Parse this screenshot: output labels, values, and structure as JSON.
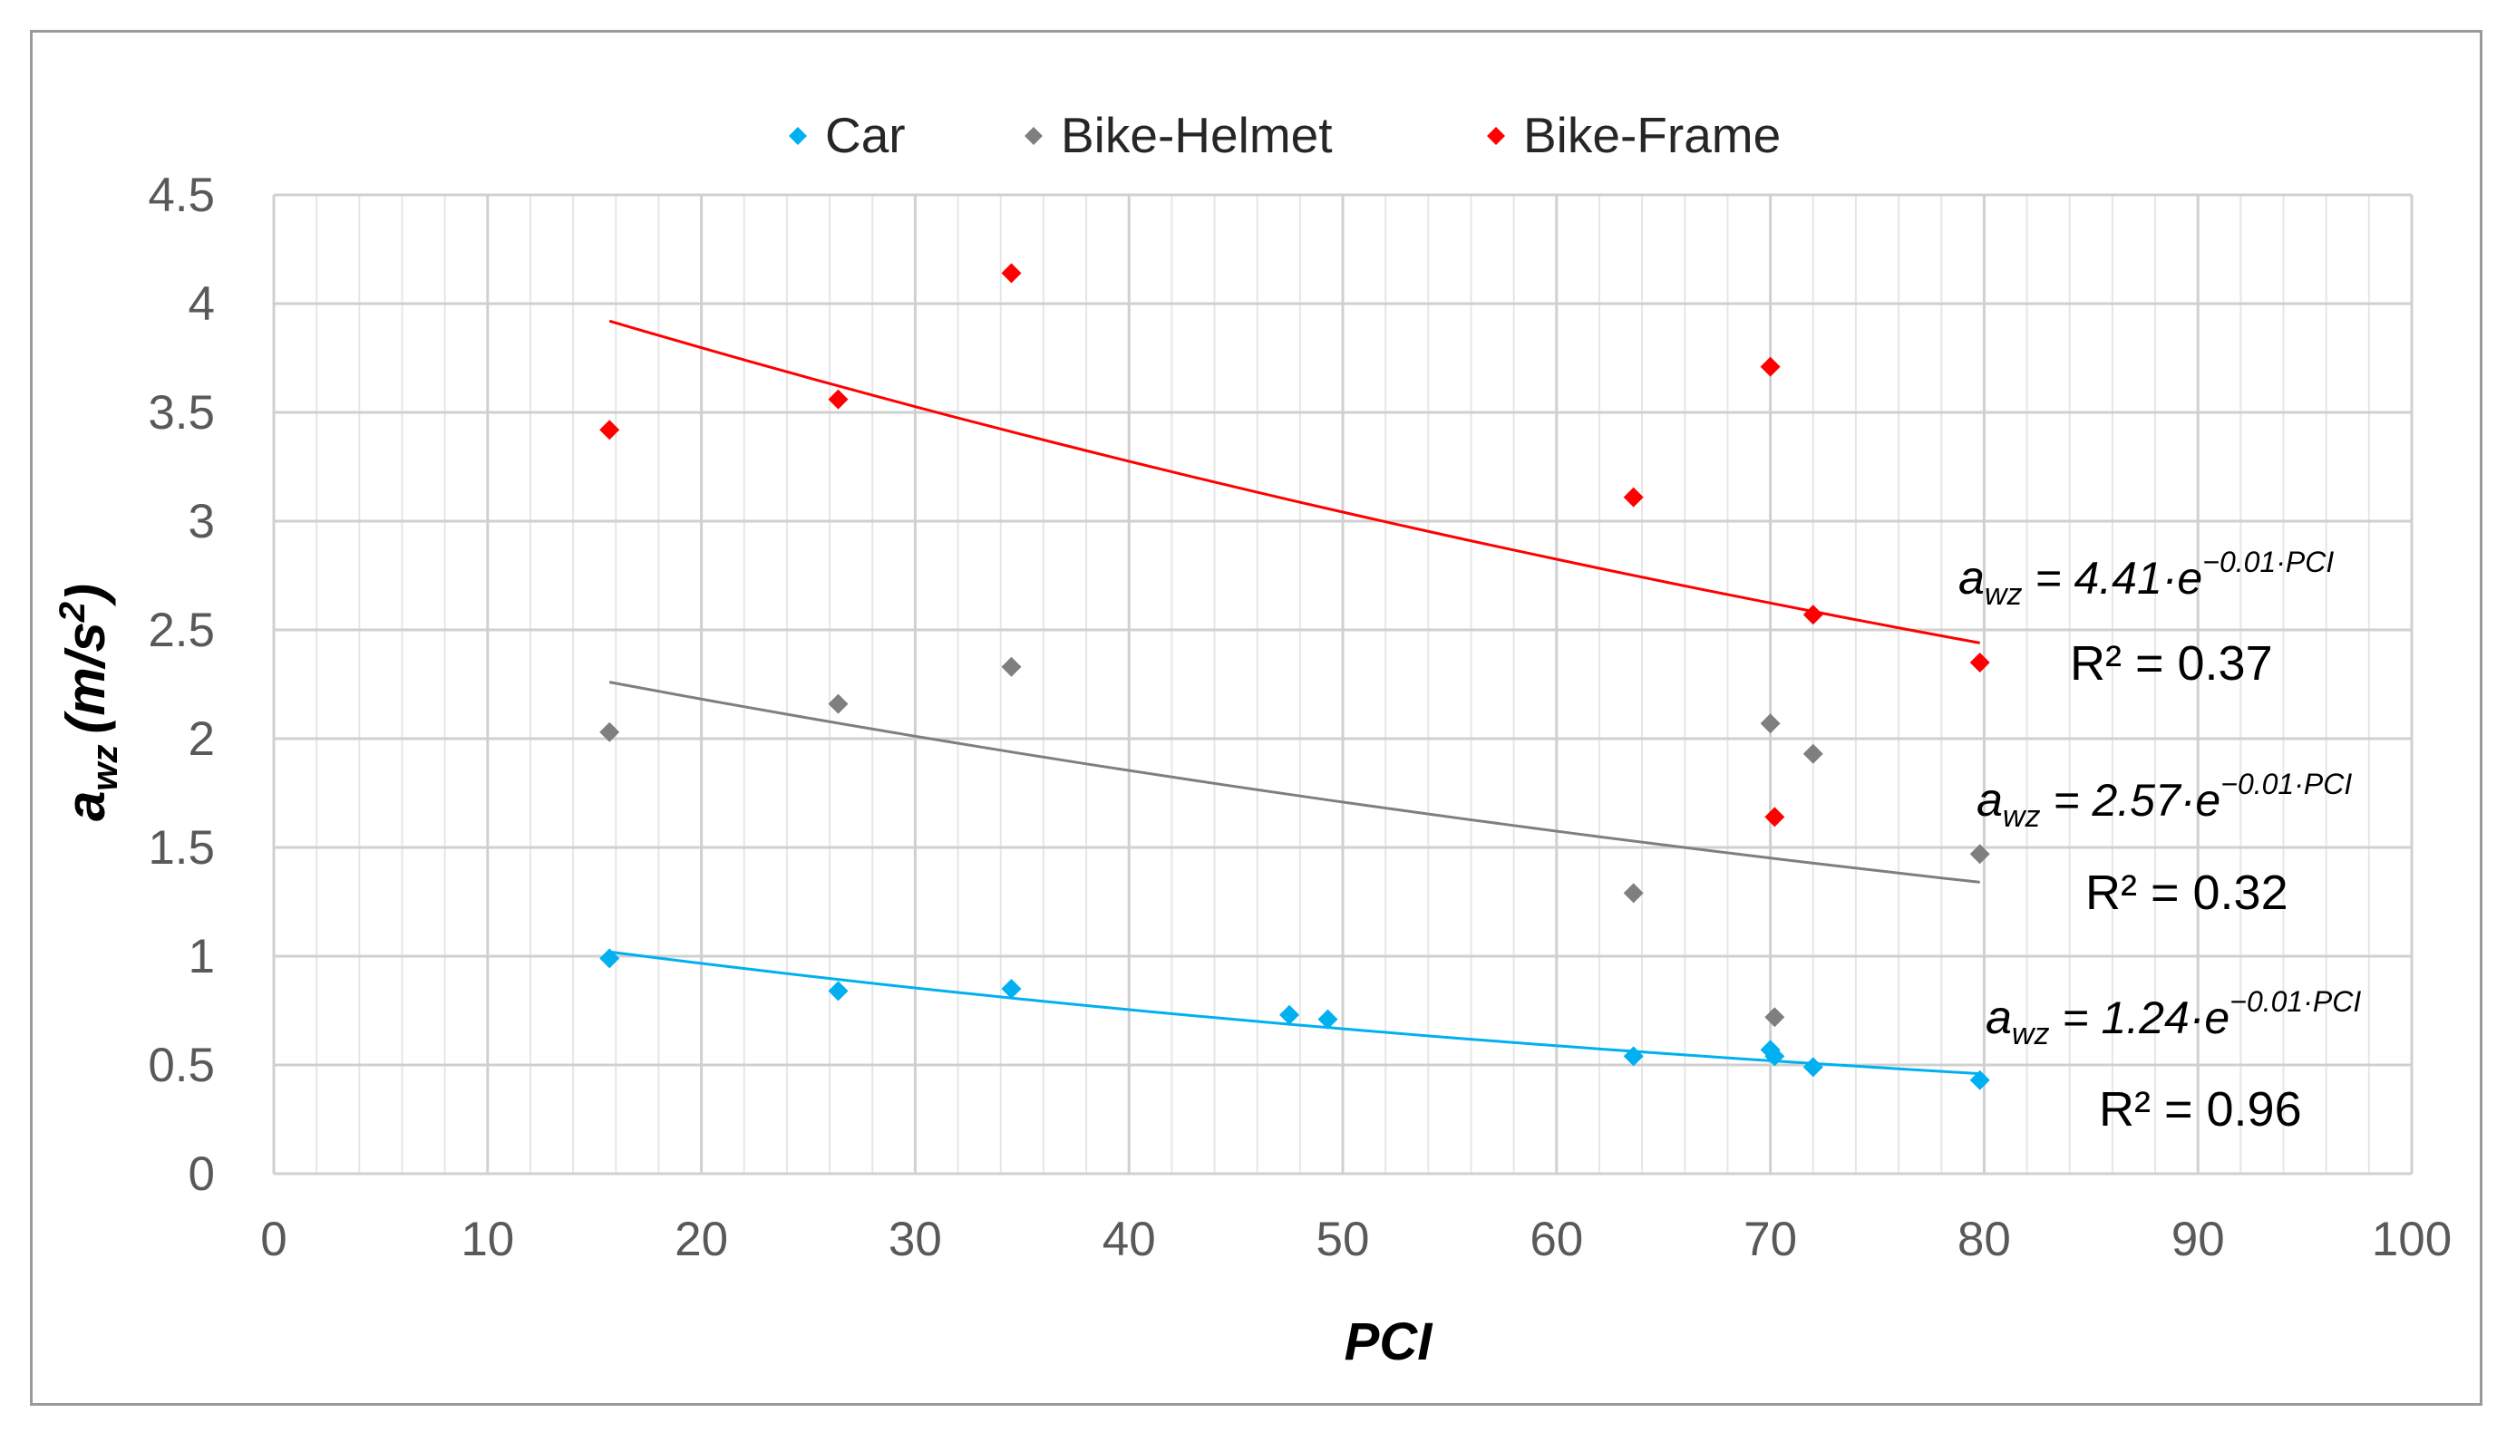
{
  "chart_data": {
    "type": "scatter",
    "title": "",
    "xlabel": "PCI",
    "ylabel": {
      "main": "a",
      "sub": "wz",
      "unit": "(m/s",
      "sup": "2",
      "close": ")"
    },
    "xlim": [
      0,
      100
    ],
    "ylim": [
      0,
      4.5
    ],
    "xticks": [
      0,
      10,
      20,
      30,
      40,
      50,
      60,
      70,
      80,
      90,
      100
    ],
    "yticks": [
      0,
      0.5,
      1,
      1.5,
      2,
      2.5,
      3,
      3.5,
      4,
      4.5
    ],
    "ytick_labels": [
      "0",
      "0.5",
      "1",
      "1.5",
      "2",
      "2.5",
      "3",
      "3.5",
      "4",
      "4.5"
    ],
    "grid": true,
    "legend_position": "top-center",
    "series": [
      {
        "name": "Car",
        "color": "#00b0f0",
        "marker": "diamond",
        "x": [
          15.7,
          26.4,
          34.5,
          47.5,
          49.3,
          63.6,
          70.0,
          70.2,
          72.0,
          79.8
        ],
        "y": [
          0.99,
          0.84,
          0.85,
          0.73,
          0.71,
          0.54,
          0.57,
          0.54,
          0.49,
          0.43
        ],
        "trend": {
          "a": 1.24,
          "b": -0.01,
          "x_from": 15.7,
          "x_to": 79.8,
          "start_y": 1.02,
          "end_y": 0.46
        },
        "equation": {
          "lhs": "a",
          "sub": "wz",
          "rhs": " = 1.24·e",
          "sup": "−0.01·PCI"
        },
        "r2": "R² = 0.96"
      },
      {
        "name": "Bike-Helmet",
        "color": "#7f7f7f",
        "marker": "diamond",
        "x": [
          15.7,
          26.4,
          34.5,
          63.6,
          70.0,
          70.2,
          72.0,
          79.8
        ],
        "y": [
          2.03,
          2.16,
          2.33,
          1.29,
          2.07,
          0.72,
          1.93,
          1.47
        ],
        "trend": {
          "a": 2.57,
          "b": -0.01,
          "x_from": 15.7,
          "x_to": 79.8,
          "start_y": 2.26,
          "end_y": 1.34
        },
        "equation": {
          "lhs": "a",
          "sub": "wz",
          "rhs": " = 2.57·e",
          "sup": "−0.01·PCI"
        },
        "r2": "R² = 0.32"
      },
      {
        "name": "Bike-Frame",
        "color": "#ff0000",
        "marker": "diamond",
        "x": [
          15.7,
          26.4,
          34.5,
          63.6,
          70.0,
          70.2,
          72.0,
          79.8
        ],
        "y": [
          3.42,
          3.56,
          4.14,
          3.11,
          3.71,
          1.64,
          2.57,
          2.35
        ],
        "trend": {
          "a": 4.41,
          "b": -0.01,
          "x_from": 15.7,
          "x_to": 79.8,
          "start_y": 3.92,
          "end_y": 2.44
        },
        "equation": {
          "lhs": "a",
          "sub": "wz",
          "rhs": " = 4.41·e",
          "sup": "−0.01·PCI"
        },
        "r2": "R² = 0.37"
      }
    ]
  }
}
